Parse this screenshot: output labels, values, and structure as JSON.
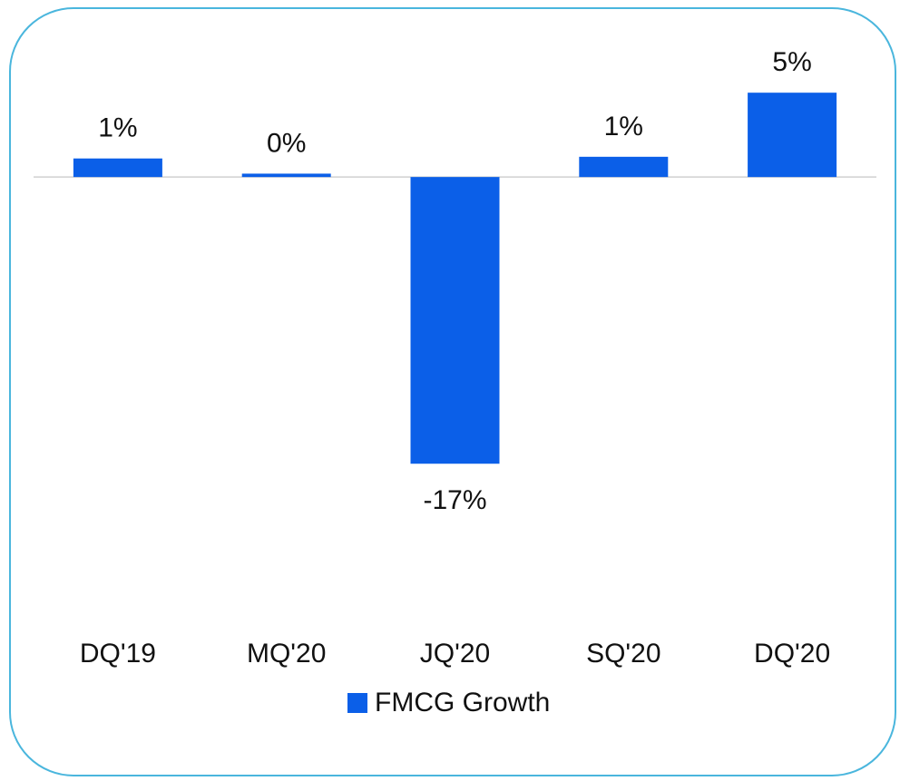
{
  "chart_data": {
    "type": "bar",
    "categories": [
      "DQ'19",
      "MQ'20",
      "JQ'20",
      "SQ'20",
      "DQ'20"
    ],
    "series": [
      {
        "name": "FMCG Growth",
        "color": "#0b5fe8",
        "values": [
          1.1,
          0.2,
          -17,
          1.2,
          5.0
        ],
        "value_labels": [
          "1%",
          "0%",
          "-17%",
          "1%",
          "5%"
        ]
      }
    ],
    "ylim": [
      -20,
      7
    ],
    "legend": "bottom"
  }
}
